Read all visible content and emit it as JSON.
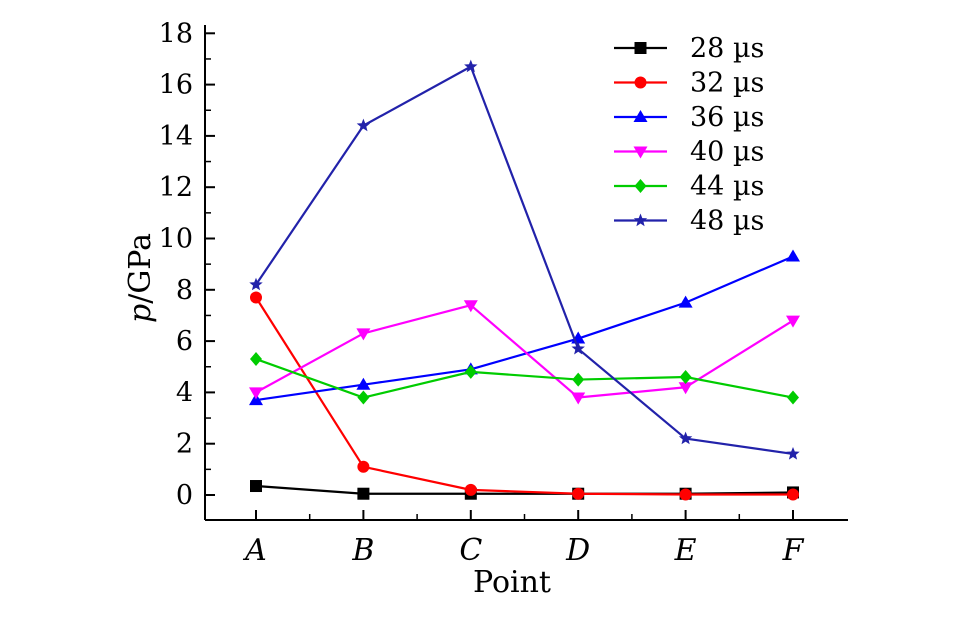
{
  "chart_data": {
    "type": "line",
    "categories": [
      "A",
      "B",
      "C",
      "D",
      "E",
      "F"
    ],
    "xlabel": "Point",
    "ylabel_var": "p",
    "ylabel_unit": "/GPa",
    "ylim": [
      -1,
      18
    ],
    "yticks": [
      0,
      2,
      4,
      6,
      8,
      10,
      12,
      14,
      16,
      18
    ],
    "ytick_labels": [
      "0",
      "2",
      "4",
      "6",
      "8",
      "10",
      "12",
      "14",
      "16",
      "18"
    ],
    "legend_position": "top-right",
    "grid": false,
    "series": [
      {
        "name": "28 µs",
        "color": "#000000",
        "marker": "square",
        "values": [
          0.35,
          0.05,
          0.05,
          0.05,
          0.05,
          0.1
        ]
      },
      {
        "name": "32 µs",
        "color": "#ff0000",
        "marker": "circle",
        "values": [
          7.7,
          1.1,
          0.2,
          0.05,
          0.02,
          0.02
        ]
      },
      {
        "name": "36 µs",
        "color": "#0000ff",
        "marker": "triangle-up",
        "values": [
          3.7,
          4.3,
          4.9,
          6.1,
          7.5,
          9.3
        ]
      },
      {
        "name": "40 µs",
        "color": "#ff00ff",
        "marker": "triangle-down",
        "values": [
          4.0,
          6.3,
          7.4,
          3.8,
          4.2,
          6.8
        ]
      },
      {
        "name": "44 µs",
        "color": "#00cc00",
        "marker": "diamond",
        "values": [
          5.3,
          3.8,
          4.8,
          4.5,
          4.6,
          3.8
        ]
      },
      {
        "name": "48 µs",
        "color": "#2222aa",
        "marker": "star",
        "values": [
          8.2,
          14.4,
          16.7,
          5.7,
          2.2,
          1.6
        ]
      }
    ]
  }
}
